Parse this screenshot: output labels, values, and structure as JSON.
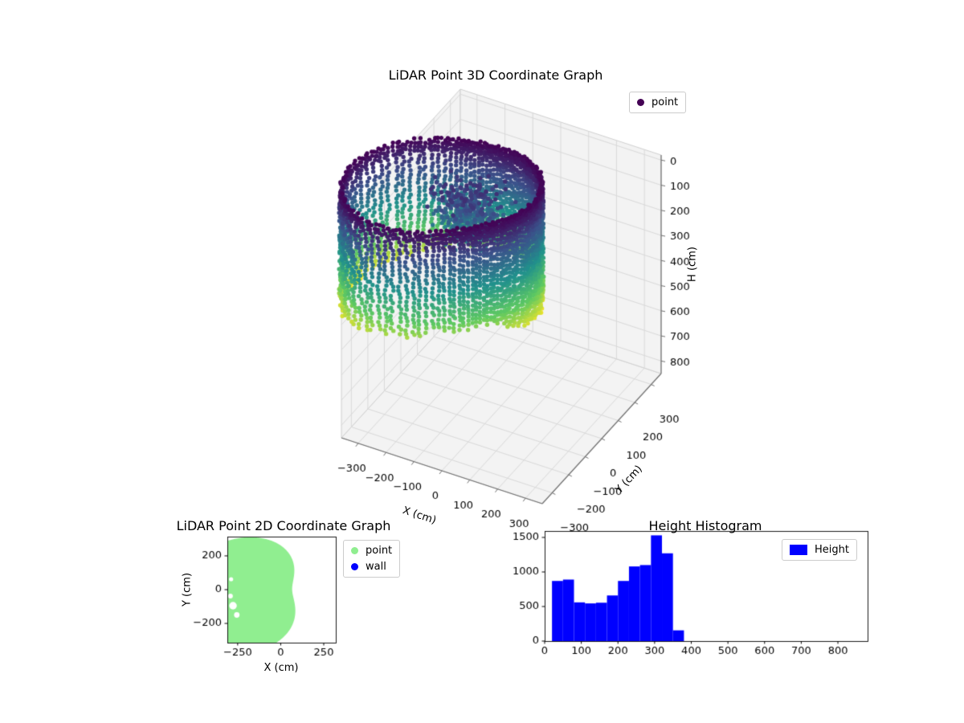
{
  "figure": {
    "background": "#ffffff"
  },
  "chart_data": [
    {
      "id": "lidar3d",
      "type": "scatter3d",
      "title": "LiDAR Point 3D Coordinate Graph",
      "xlabel": "X (cm)",
      "ylabel": "Y (cm)",
      "zlabel": "H (cm)",
      "xlim": [
        -360,
        360
      ],
      "ylim": [
        -360,
        360
      ],
      "zlim": [
        -20,
        850
      ],
      "z_axis_note": "H axis inverted on screen: 0 at top, 800 at bottom",
      "xticks": [
        -300,
        -200,
        -100,
        0,
        100,
        200,
        300
      ],
      "yticks": [
        -300,
        -200,
        -100,
        0,
        100,
        200,
        300
      ],
      "zticks": [
        0,
        100,
        200,
        300,
        400,
        500,
        600,
        700,
        800
      ],
      "legend": [
        {
          "label": "point",
          "marker_color": "#440154"
        }
      ],
      "colormap": {
        "name": "viridis",
        "stops": [
          "#440154",
          "#3b528b",
          "#21918c",
          "#5ec962",
          "#fde725"
        ]
      },
      "point_cloud": {
        "description": "room-scan wall ring of vertical dotted columns colored by height, plus interior cluster",
        "ring_center": [
          -70,
          10
        ],
        "ring_radius_base": 180,
        "ring_radius_bulge": 260,
        "ring_bulge_angle_rad": 3.6,
        "ring_bulge_sigma": 0.7,
        "columns": 110,
        "column_height_range": [
          0,
          500
        ],
        "column_bottom_base": 430,
        "dot_step_cm": 16,
        "cluster_center": [
          -140,
          30
        ],
        "cluster_spread": [
          55,
          42
        ],
        "cluster_height_range": [
          70,
          240
        ],
        "cluster_points": 420,
        "seed": 42
      }
    },
    {
      "id": "lidar2d",
      "type": "scatter",
      "title": "LiDAR Point 2D Coordinate Graph",
      "xlabel": "X (cm)",
      "ylabel": "Y (cm)",
      "xlim": [
        -310,
        320
      ],
      "ylim": [
        -314,
        314
      ],
      "xticks": [
        -250,
        0,
        250
      ],
      "yticks": [
        -200,
        0,
        200
      ],
      "legend": [
        {
          "label": "point",
          "marker_color": "#90EE90"
        },
        {
          "label": "wall",
          "marker_color": "#0000FF"
        }
      ],
      "disc": {
        "description": "filled light-green scan disc, clipped by axes on left/top/bottom, small white shadow holes near left edge",
        "center": [
          -120,
          0
        ],
        "radius_base": 290,
        "radius_bulge": 170,
        "bulge_angle_rad": 3.5,
        "bulge_sigma": 0.9,
        "radius_dent": 105,
        "dent_angle_rad": 0,
        "dent_sigma": 0.5,
        "holes": [
          [
            -277,
            -95,
            22
          ],
          [
            -292,
            -38,
            14
          ],
          [
            -255,
            -150,
            16
          ],
          [
            -288,
            62,
            12
          ]
        ]
      }
    },
    {
      "id": "height_hist",
      "type": "histogram",
      "title": "Height Histogram",
      "legend": [
        {
          "label": "Height",
          "color": "#0000FF"
        }
      ],
      "bar_color": "#0000FF",
      "bin_start": 20,
      "bin_width": 30,
      "values": [
        870,
        890,
        560,
        545,
        555,
        660,
        870,
        1080,
        1100,
        1530,
        1270,
        155
      ],
      "xlim": [
        0,
        881
      ],
      "ylim": [
        0,
        1593
      ],
      "xticks": [
        0,
        100,
        200,
        300,
        400,
        500,
        600,
        700,
        800
      ],
      "yticks": [
        0,
        500,
        1000,
        1500
      ]
    }
  ]
}
